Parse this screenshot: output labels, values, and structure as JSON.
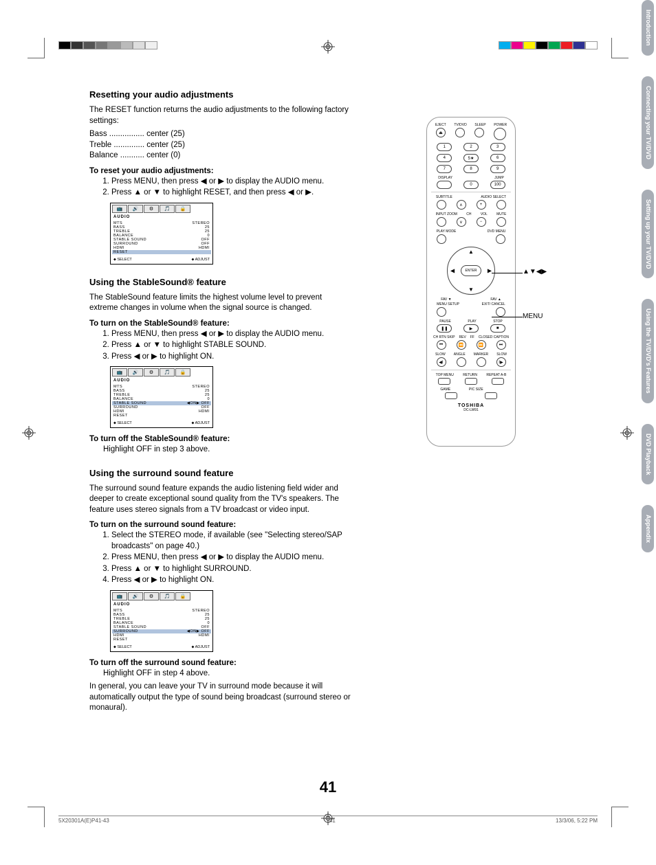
{
  "page_number": "41",
  "color_bars_left": [
    "#000000",
    "#333333",
    "#555555",
    "#777777",
    "#999999",
    "#bbbbbb",
    "#dddddd",
    "#f0f0f0"
  ],
  "color_bars_right": [
    "#00aeef",
    "#ec008c",
    "#fff200",
    "#000000",
    "#00a651",
    "#ed1c24",
    "#2e3192",
    "#ffffff"
  ],
  "section1": {
    "heading": "Resetting your audio adjustments",
    "intro": "The RESET function returns the audio adjustments to the following factory settings:",
    "settings": [
      "Bass ................ center (25)",
      "Treble .............. center (25)",
      "Balance ........... center (0)"
    ],
    "sub_bold": "To reset your audio adjustments:",
    "steps": [
      "Press MENU, then press ◀ or ▶ to display the AUDIO menu.",
      "Press ▲ or ▼ to highlight RESET, and then press ◀ or ▶."
    ]
  },
  "section2": {
    "heading": "Using the StableSound® feature",
    "intro": "The StableSound feature limits the highest volume level to prevent extreme changes in volume when the signal source is changed.",
    "sub_bold_on": "To turn on the StableSound® feature:",
    "steps_on": [
      "Press MENU, then press ◀ or ▶ to display the AUDIO menu.",
      "Press ▲ or ▼ to highlight STABLE SOUND.",
      "Press ◀ or ▶ to highlight ON."
    ],
    "sub_bold_off": "To turn off the StableSound® feature:",
    "off_text": "Highlight OFF in step 3 above."
  },
  "section3": {
    "heading": "Using the surround sound feature",
    "intro": "The surround sound feature expands the audio listening field wider and deeper to create exceptional sound quality from the TV's speakers. The feature uses stereo signals from a TV broadcast or video input.",
    "sub_bold_on": "To turn on the surround sound feature:",
    "steps_on": [
      "Select the STEREO mode, if available (see \"Selecting stereo/SAP broadcasts\" on page 40.)",
      "Press MENU, then press ◀ or ▶ to display the AUDIO menu.",
      "Press ▲ or ▼ to highlight SURROUND.",
      "Press ◀ or ▶ to highlight ON."
    ],
    "sub_bold_off": "To turn off the surround sound feature:",
    "off_text": "Highlight OFF in step 4 above.",
    "tail": "In general, you can leave your TV in surround mode because it will automatically output the type of sound being broadcast (surround stereo or monaural)."
  },
  "osd": {
    "title": "AUDIO",
    "rows": [
      {
        "l": "MTS",
        "r": "STEREO"
      },
      {
        "l": "BASS",
        "r": "25"
      },
      {
        "l": "TREBLE",
        "r": "25"
      },
      {
        "l": "BALANCE",
        "r": "0"
      },
      {
        "l": "STABLE SOUND",
        "r": "OFF"
      },
      {
        "l": "SURROUND",
        "r": "OFF"
      },
      {
        "l": "HDMI",
        "r": "HDMI"
      },
      {
        "l": "RESET",
        "r": ""
      }
    ],
    "foot_l": "SELECT",
    "foot_r": "ADJUST"
  },
  "osd2_hl_index": 4,
  "osd2_hl_value": "◀ON▶ OFF",
  "osd3_hl_index": 5,
  "osd3_hl_value": "◀ON▶ OFF",
  "remote": {
    "top_labels": [
      "EJECT",
      "TV/DVD",
      "SLEEP",
      "POWER"
    ],
    "numpad": [
      [
        "1",
        "2",
        "3"
      ],
      [
        "4",
        "5★",
        "6"
      ],
      [
        "7",
        "8",
        "9"
      ]
    ],
    "display_row": [
      "DISPLAY",
      "",
      "0",
      "100"
    ],
    "jump_label": "JUMP",
    "subtitle": "SUBTITLE",
    "audio_select": "AUDIO SELECT",
    "input_zoom": "INPUT\nZOOM",
    "ch": "CH",
    "vol": "VOL",
    "mute": "MUTE",
    "playmode": "PLAY MODE",
    "dvdmenu": "DVD MENU",
    "fav_l": "FAV\n▼",
    "fav_r": "FAV\n▲",
    "enter": "ENTER",
    "menu_setup": "MENU\nSETUP",
    "exit_cancel": "EXIT/\nCANCEL",
    "transport_labels": [
      "PAUSE",
      "PLAY",
      "STOP"
    ],
    "chrtn": "CH RTN\nSKIP",
    "rev": "REV",
    "ff": "FF",
    "cc": "CLOSED CAPTION\nSKIP",
    "slow_row": [
      "SLOW",
      "ANGLE",
      "MARKER",
      "SLOW"
    ],
    "bottom_labels": [
      "TOP MENU",
      "RETURN",
      "REPEAT A-B"
    ],
    "game": "GAME",
    "picsize": "PIC SIZE",
    "brand": "TOSHIBA",
    "model": "DC-LW91"
  },
  "callouts": {
    "arrows": "▲▼◀▶",
    "menu": "MENU"
  },
  "side_tabs": [
    "Introduction",
    "Connecting your TV/DVD",
    "Setting up your TV/DVD",
    "Using the TV/DVD's Features",
    "DVD Playback",
    "Appendix"
  ],
  "footer": {
    "left": "5X20301A(E)P41-43",
    "mid": "41",
    "right": "13/3/06, 5:22 PM"
  }
}
